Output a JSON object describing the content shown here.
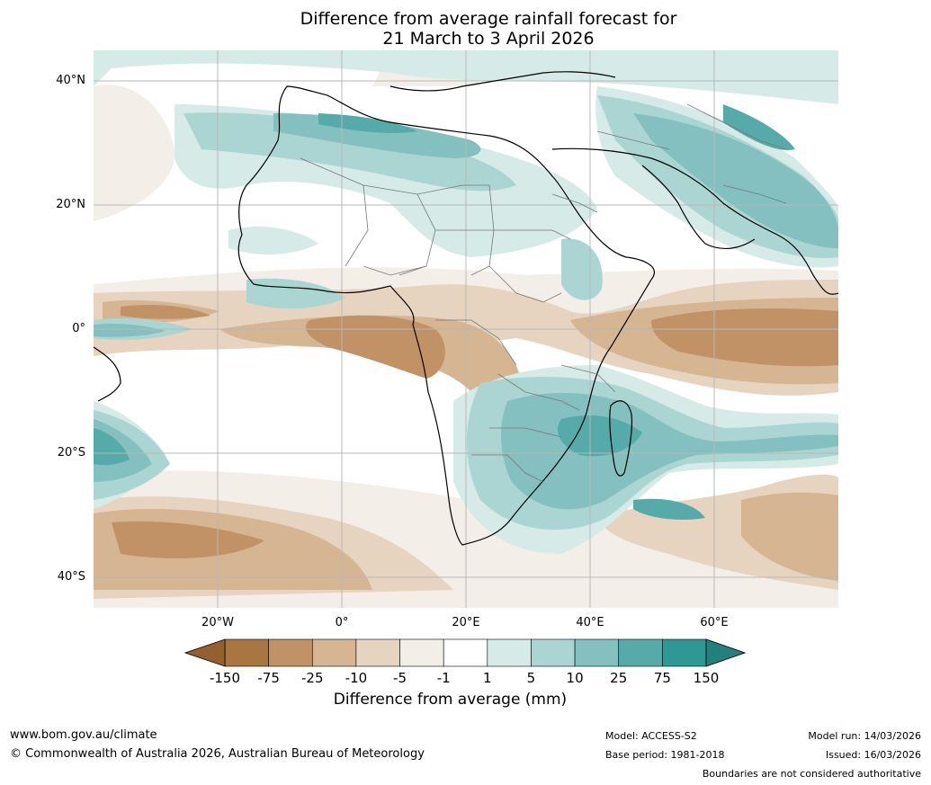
{
  "title": {
    "line1": "Difference from average rainfall forecast for",
    "line2": "21 March to 3 April 2026"
  },
  "map": {
    "lat_labels": [
      "40°N",
      "20°N",
      "0°",
      "20°S",
      "40°S"
    ],
    "lon_labels": [
      "20°W",
      "0°",
      "20°E",
      "40°E",
      "60°E"
    ]
  },
  "legend": {
    "ticks": [
      "-150",
      "-75",
      "-25",
      "-10",
      "-5",
      "-1",
      "1",
      "5",
      "10",
      "25",
      "75",
      "150"
    ],
    "colors": [
      "#a97540",
      "#c19265",
      "#d6b593",
      "#e6d3c0",
      "#f4eee8",
      "#ffffff",
      "#d6eae8",
      "#abd5d3",
      "#83c0bf",
      "#56aaa9",
      "#2e9895"
    ],
    "under_color": "#946030",
    "over_color": "#24807c",
    "label": "Difference from average (mm)"
  },
  "footer": {
    "website": "www.bom.gov.au/climate",
    "copyright": "© Commonwealth of Australia 2026, Australian Bureau of Meteorology",
    "model": "Model: ACCESS-S2",
    "base_period": "Base period: 1981-2018",
    "model_run": "Model run: 14/03/2026",
    "issued": "Issued: 16/03/2026",
    "disclaimer": "Boundaries are not considered authoritative"
  }
}
